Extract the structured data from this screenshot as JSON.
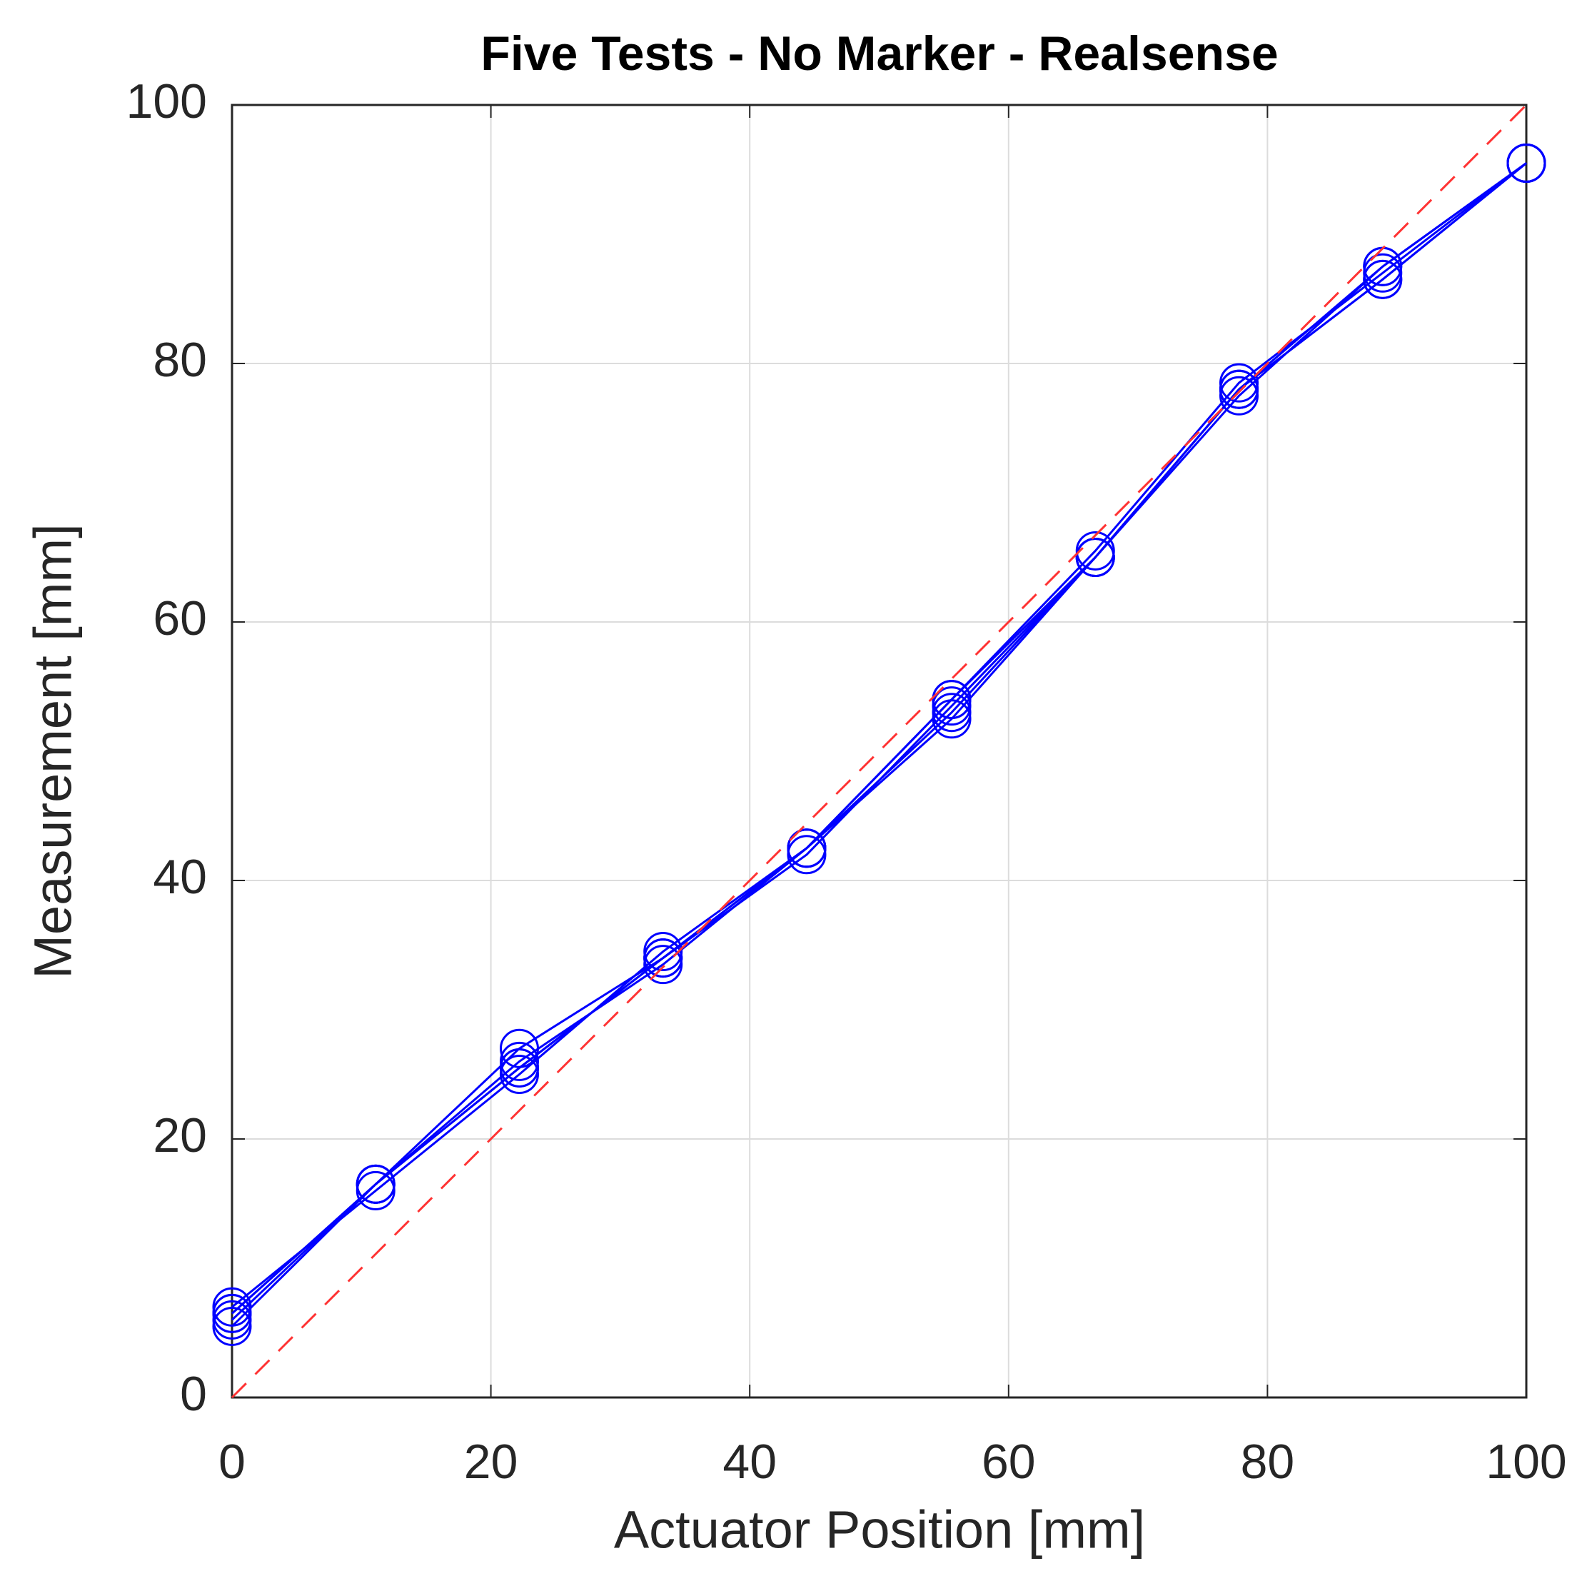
{
  "chart_data": {
    "type": "line",
    "title": "Five Tests - No Marker - Realsense",
    "x_label": "Actuator Position [mm]",
    "y_label": "Measurement [mm]",
    "x": [
      0,
      11.1,
      22.2,
      33.3,
      44.4,
      55.6,
      66.7,
      77.8,
      88.9,
      100
    ],
    "series": [
      {
        "color": "#0000ff",
        "values": [
          6.5,
          16.5,
          27,
          34,
          42.5,
          54,
          65,
          78,
          87.5,
          95.5
        ]
      },
      {
        "color": "#0000ff",
        "values": [
          5.5,
          16.5,
          25.5,
          34,
          42.5,
          53,
          65,
          78,
          86.5,
          95.5
        ]
      },
      {
        "color": "#0000ff",
        "values": [
          6,
          16.5,
          26,
          33.5,
          42.5,
          54,
          65.5,
          78.5,
          87,
          95.5
        ]
      },
      {
        "color": "#0000ff",
        "values": [
          7,
          16,
          25,
          34.5,
          42.5,
          52.5,
          65,
          77.5,
          87.5,
          95.5
        ]
      },
      {
        "color": "#0000ff",
        "values": [
          6.5,
          16.5,
          25.5,
          34,
          42,
          53.5,
          65,
          78,
          86.5,
          95.5
        ]
      }
    ],
    "reference_line": {
      "x": [
        0,
        100
      ],
      "values": [
        0,
        100
      ],
      "color": "#ff3333",
      "dashed": true
    },
    "xlim": [
      0,
      100
    ],
    "xticks": [
      0,
      20,
      40,
      60,
      80,
      100
    ],
    "ylim": [
      0,
      100
    ],
    "yticks": [
      0,
      20,
      40,
      60,
      80,
      100
    ],
    "grid": true
  }
}
